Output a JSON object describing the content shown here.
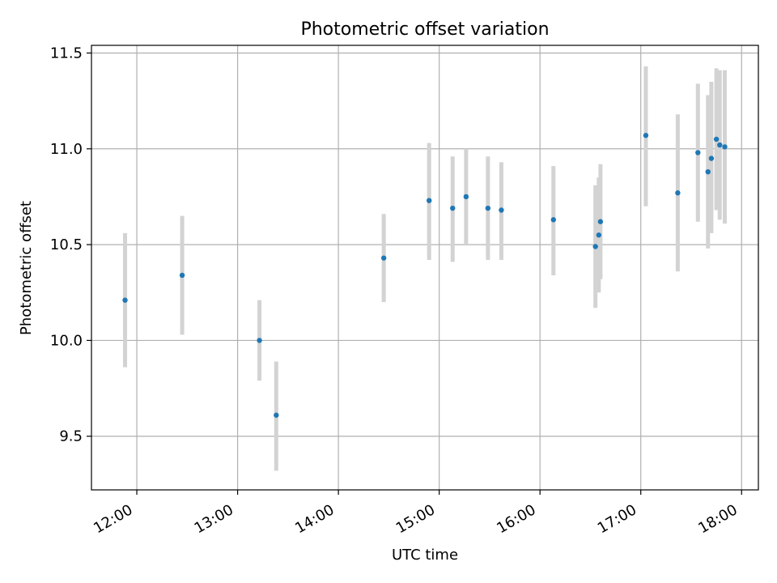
{
  "chart_data": {
    "type": "scatter",
    "title": "Photometric offset variation",
    "xlabel": "UTC time",
    "ylabel": "Photometric offset",
    "xlim": [
      "11:33",
      "18:10"
    ],
    "ylim": [
      9.22,
      11.54
    ],
    "xticks": [
      "12:00",
      "13:00",
      "14:00",
      "15:00",
      "16:00",
      "17:00",
      "18:00"
    ],
    "yticks": [
      9.5,
      10.0,
      10.5,
      11.0,
      11.5
    ],
    "ytick_labels": [
      "9.5",
      "10.0",
      "10.5",
      "11.0",
      "11.5"
    ],
    "grid": true,
    "point_color": "#1f77b4",
    "errorbar_color": "#d3d3d3",
    "series": [
      {
        "points": [
          {
            "x": "11:53",
            "y": 10.21,
            "ylow": 9.86,
            "yhigh": 10.56
          },
          {
            "x": "12:27",
            "y": 10.34,
            "ylow": 10.03,
            "yhigh": 10.65
          },
          {
            "x": "13:13",
            "y": 10.0,
            "ylow": 9.79,
            "yhigh": 10.21
          },
          {
            "x": "13:23",
            "y": 9.61,
            "ylow": 9.32,
            "yhigh": 9.89
          },
          {
            "x": "14:27",
            "y": 10.43,
            "ylow": 10.2,
            "yhigh": 10.66
          },
          {
            "x": "14:54",
            "y": 10.73,
            "ylow": 10.42,
            "yhigh": 11.03
          },
          {
            "x": "15:08",
            "y": 10.69,
            "ylow": 10.41,
            "yhigh": 10.96
          },
          {
            "x": "15:16",
            "y": 10.75,
            "ylow": 10.5,
            "yhigh": 11.0
          },
          {
            "x": "15:29",
            "y": 10.69,
            "ylow": 10.42,
            "yhigh": 10.96
          },
          {
            "x": "15:37",
            "y": 10.68,
            "ylow": 10.42,
            "yhigh": 10.93
          },
          {
            "x": "16:08",
            "y": 10.63,
            "ylow": 10.34,
            "yhigh": 10.91
          },
          {
            "x": "16:33",
            "y": 10.49,
            "ylow": 10.17,
            "yhigh": 10.81
          },
          {
            "x": "16:35",
            "y": 10.55,
            "ylow": 10.25,
            "yhigh": 10.85
          },
          {
            "x": "16:36",
            "y": 10.62,
            "ylow": 10.32,
            "yhigh": 10.92
          },
          {
            "x": "17:03",
            "y": 11.07,
            "ylow": 10.7,
            "yhigh": 11.43
          },
          {
            "x": "17:22",
            "y": 10.77,
            "ylow": 10.36,
            "yhigh": 11.18
          },
          {
            "x": "17:34",
            "y": 10.98,
            "ylow": 10.62,
            "yhigh": 11.34
          },
          {
            "x": "17:40",
            "y": 10.88,
            "ylow": 10.48,
            "yhigh": 11.28
          },
          {
            "x": "17:42",
            "y": 10.95,
            "ylow": 10.56,
            "yhigh": 11.35
          },
          {
            "x": "17:45",
            "y": 11.05,
            "ylow": 10.68,
            "yhigh": 11.42
          },
          {
            "x": "17:47",
            "y": 11.02,
            "ylow": 10.63,
            "yhigh": 11.41
          },
          {
            "x": "17:50",
            "y": 11.01,
            "ylow": 10.61,
            "yhigh": 11.41
          }
        ]
      }
    ]
  }
}
